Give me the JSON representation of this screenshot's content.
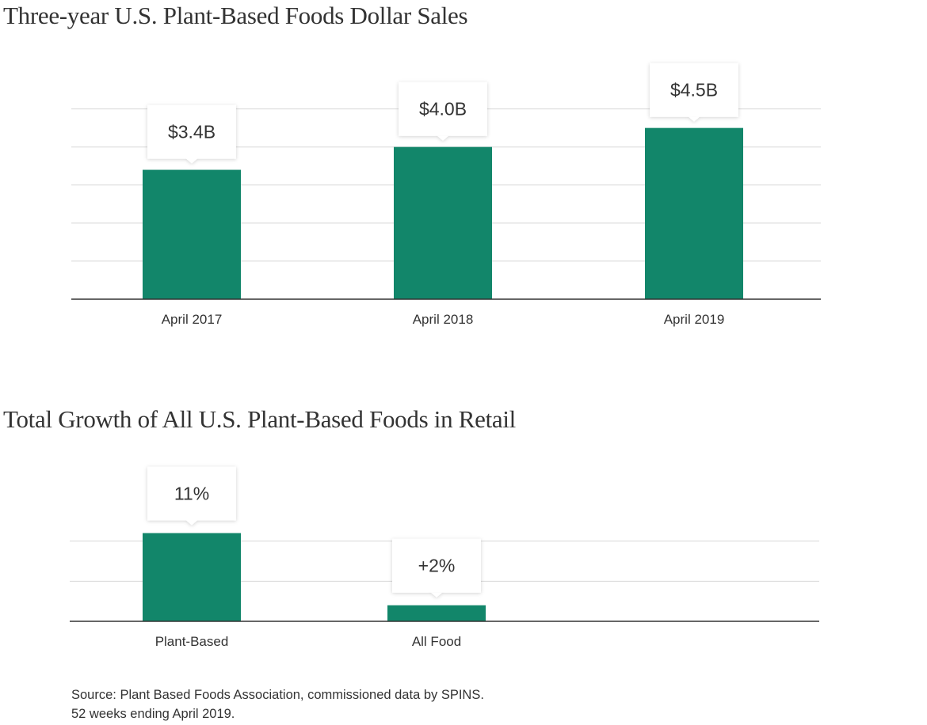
{
  "chart_data": [
    {
      "type": "bar",
      "title": "Three-year U.S. Plant-Based Foods Dollar Sales",
      "categories": [
        "April 2017",
        "April 2018",
        "April 2019"
      ],
      "values": [
        3.4,
        4.0,
        4.5
      ],
      "value_labels": [
        "$3.4B",
        "$4.0B",
        "$4.5B"
      ],
      "xlabel": "",
      "ylabel": "",
      "ylim": [
        0,
        5.2
      ],
      "gridlines": [
        1,
        2,
        3,
        4,
        5
      ],
      "grid": true,
      "legend": "none",
      "bar_color": "#12866a"
    },
    {
      "type": "bar",
      "title": "Total Growth of All U.S. Plant-Based Foods in Retail",
      "categories": [
        "Plant-Based",
        "All Food"
      ],
      "values": [
        11,
        2
      ],
      "value_labels": [
        "11%",
        "+2%"
      ],
      "xlabel": "",
      "ylabel": "",
      "ylim": [
        0,
        14.8
      ],
      "gridlines": [
        5,
        10,
        15
      ],
      "grid": true,
      "legend": "none",
      "bar_color": "#12866a"
    }
  ],
  "source": {
    "line1": "Source: Plant Based Foods Association, commissioned data by SPINS.",
    "line2": "52 weeks ending April 2019."
  }
}
